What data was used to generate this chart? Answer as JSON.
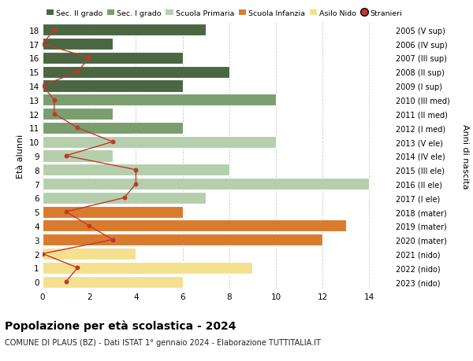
{
  "ages": [
    18,
    17,
    16,
    15,
    14,
    13,
    12,
    11,
    10,
    9,
    8,
    7,
    6,
    5,
    4,
    3,
    2,
    1,
    0
  ],
  "years": [
    "2005 (V sup)",
    "2006 (IV sup)",
    "2007 (III sup)",
    "2008 (II sup)",
    "2009 (I sup)",
    "2010 (III med)",
    "2011 (II med)",
    "2012 (I med)",
    "2013 (V ele)",
    "2014 (IV ele)",
    "2015 (III ele)",
    "2016 (II ele)",
    "2017 (I ele)",
    "2018 (mater)",
    "2019 (mater)",
    "2020 (mater)",
    "2021 (nido)",
    "2022 (nido)",
    "2023 (nido)"
  ],
  "bar_values": [
    7,
    3,
    6,
    8,
    6,
    10,
    3,
    6,
    10,
    3,
    8,
    14,
    7,
    6,
    13,
    12,
    4,
    9,
    6
  ],
  "bar_colors": [
    "#4a6741",
    "#4a6741",
    "#4a6741",
    "#4a6741",
    "#4a6741",
    "#7a9e6e",
    "#7a9e6e",
    "#7a9e6e",
    "#b5cfac",
    "#b5cfac",
    "#b5cfac",
    "#b5cfac",
    "#b5cfac",
    "#d97b2e",
    "#d97b2e",
    "#d97b2e",
    "#f5e090",
    "#f5e090",
    "#f5e090"
  ],
  "stranieri_x": [
    0.5,
    0,
    2,
    1.5,
    0,
    0.5,
    0.5,
    1.5,
    3,
    1,
    4,
    4,
    3.5,
    1,
    2,
    3,
    0,
    1.5,
    1
  ],
  "title": "Popolazione per età scolastica - 2024",
  "subtitle": "COMUNE DI PLAUS (BZ) - Dati ISTAT 1° gennaio 2024 - Elaborazione TUTTITALIA.IT",
  "ylabel_left": "Età alunni",
  "ylabel_right": "Anni di nascita",
  "xlim": [
    0,
    15
  ],
  "xticks": [
    0,
    2,
    4,
    6,
    8,
    10,
    12,
    14
  ],
  "ylim": [
    -0.5,
    18.5
  ],
  "legend_labels": [
    "Sec. II grado",
    "Sec. I grado",
    "Scuola Primaria",
    "Scuola Infanzia",
    "Asilo Nido",
    "Stranieri"
  ],
  "legend_colors": [
    "#4a6741",
    "#7a9e6e",
    "#b5cfac",
    "#d97b2e",
    "#f5e090",
    "#c0392b"
  ],
  "color_stranieri": "#c0392b",
  "bar_height": 0.85,
  "background_color": "#ffffff",
  "grid_color": "#cccccc"
}
